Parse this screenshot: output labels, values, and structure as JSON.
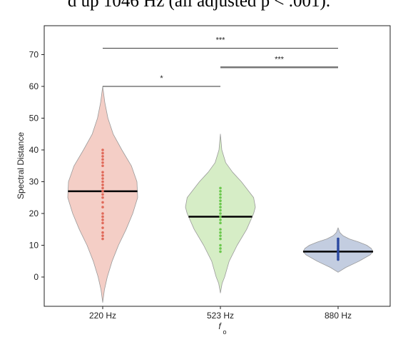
{
  "caption_fragment": "d up 1046 Hz (all adjusted p < .001).",
  "chart_data": {
    "type": "violin",
    "xlabel": "f",
    "xlabel_subscript": "o",
    "ylabel": "Spectral Distance",
    "ylim": [
      -9,
      78
    ],
    "yticks": [
      0,
      10,
      20,
      30,
      40,
      50,
      60,
      70
    ],
    "grid": false,
    "categories": [
      "220 Hz",
      "523 Hz",
      "880 Hz"
    ],
    "colors": {
      "fill": [
        "#f4cec6",
        "#d6edc6",
        "#c3cde0"
      ],
      "points": [
        "#e06a5a",
        "#6cc84e",
        "#2a48a0"
      ],
      "outline": "#9a9a9a",
      "median": "#000000",
      "bracket": "#333333"
    },
    "series": [
      {
        "category": "220 Hz",
        "median": 27,
        "kde_min": -8,
        "kde_max": 60,
        "width_profile": [
          [
            -8,
            0
          ],
          [
            -4,
            0.05
          ],
          [
            0,
            0.13
          ],
          [
            5,
            0.27
          ],
          [
            10,
            0.45
          ],
          [
            15,
            0.67
          ],
          [
            20,
            0.86
          ],
          [
            25,
            1.0
          ],
          [
            30,
            0.98
          ],
          [
            35,
            0.82
          ],
          [
            40,
            0.55
          ],
          [
            45,
            0.3
          ],
          [
            50,
            0.15
          ],
          [
            55,
            0.06
          ],
          [
            60,
            0
          ]
        ],
        "points": [
          12,
          13,
          14,
          15.5,
          17,
          18,
          19,
          20,
          22,
          23.5,
          25,
          26,
          27,
          28,
          29,
          30,
          31,
          32,
          33,
          35,
          36,
          37,
          38,
          39,
          40
        ]
      },
      {
        "category": "523 Hz",
        "median": 19,
        "kde_min": -5,
        "kde_max": 45,
        "width_profile": [
          [
            -5,
            0
          ],
          [
            -2,
            0.05
          ],
          [
            0,
            0.12
          ],
          [
            5,
            0.25
          ],
          [
            10,
            0.48
          ],
          [
            15,
            0.75
          ],
          [
            20,
            0.95
          ],
          [
            22,
            1.0
          ],
          [
            25,
            0.95
          ],
          [
            30,
            0.6
          ],
          [
            33,
            0.35
          ],
          [
            36,
            0.15
          ],
          [
            40,
            0.04
          ],
          [
            45,
            0
          ]
        ],
        "points": [
          8,
          9,
          10,
          12,
          13,
          14,
          15,
          17,
          18,
          19,
          20,
          21,
          22,
          23,
          24,
          25,
          26,
          27,
          28
        ]
      },
      {
        "category": "880 Hz",
        "median": 8,
        "kde_min": 1.5,
        "kde_max": 15.5,
        "width_profile": [
          [
            1.5,
            0
          ],
          [
            3,
            0.22
          ],
          [
            5,
            0.6
          ],
          [
            7,
            0.92
          ],
          [
            8,
            1.0
          ],
          [
            9,
            0.95
          ],
          [
            10,
            0.82
          ],
          [
            11,
            0.6
          ],
          [
            12,
            0.32
          ],
          [
            13,
            0.14
          ],
          [
            14,
            0.05
          ],
          [
            15.5,
            0
          ]
        ],
        "points": [
          5.5,
          6,
          6.5,
          7,
          7.5,
          8,
          8.5,
          9,
          9.5,
          10,
          10.5,
          11,
          11.5,
          12
        ]
      }
    ],
    "significance_brackets": [
      {
        "from": "220 Hz",
        "to": "880 Hz",
        "y": 72,
        "label": "***"
      },
      {
        "from": "523 Hz",
        "to": "880 Hz",
        "y": 66,
        "label": "***"
      },
      {
        "from": "220 Hz",
        "to": "523 Hz",
        "y": 60,
        "label": "*"
      }
    ]
  }
}
